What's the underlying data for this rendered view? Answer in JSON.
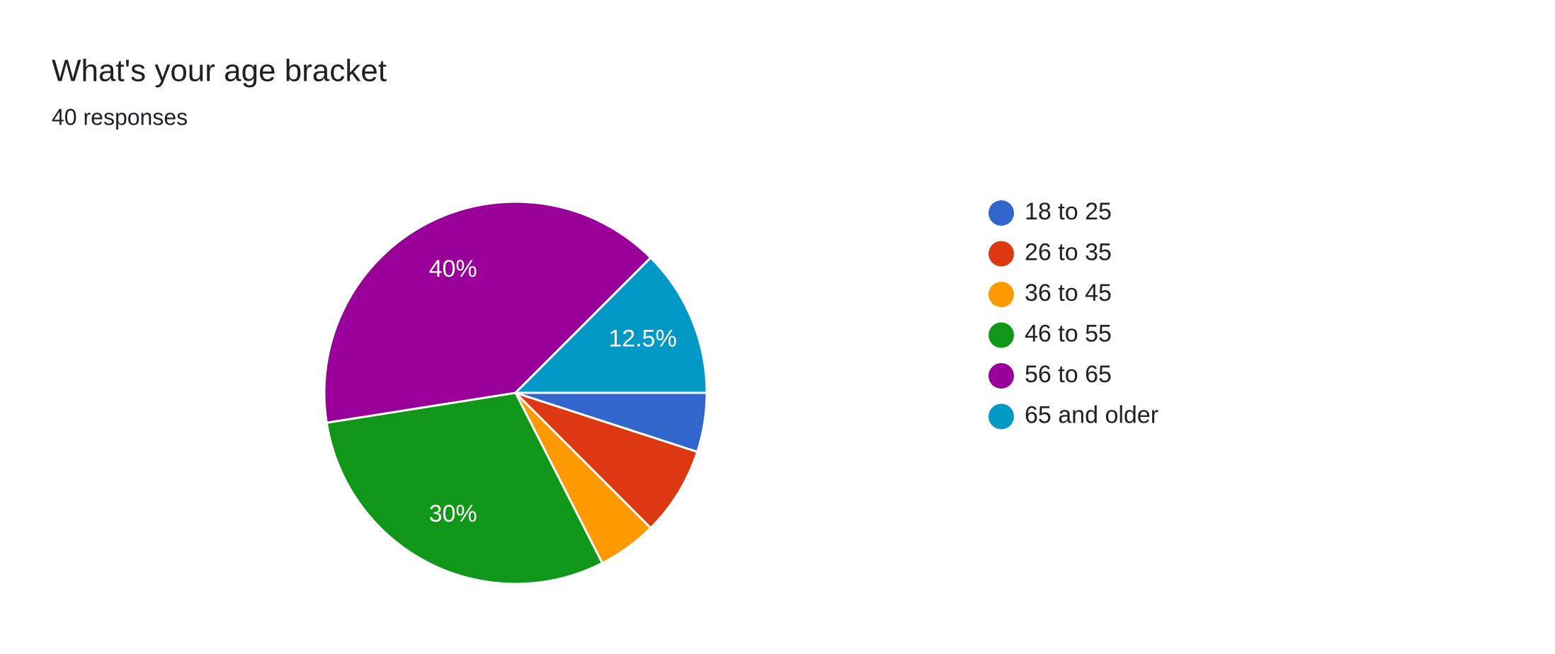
{
  "chart_data": {
    "type": "pie",
    "title": "What's your age bracket",
    "subtitle": "40 responses",
    "categories": [
      "18 to 25",
      "26 to 35",
      "36 to 45",
      "46 to 55",
      "56 to 65",
      "65 and older"
    ],
    "values": [
      5,
      7.5,
      5,
      30,
      40,
      12.5
    ],
    "value_labels": [
      null,
      null,
      null,
      "30%",
      "40%",
      "12.5%"
    ],
    "colors": [
      "#3366cc",
      "#dc3912",
      "#ff9900",
      "#109618",
      "#990099",
      "#0099c6"
    ],
    "legend": "right"
  }
}
